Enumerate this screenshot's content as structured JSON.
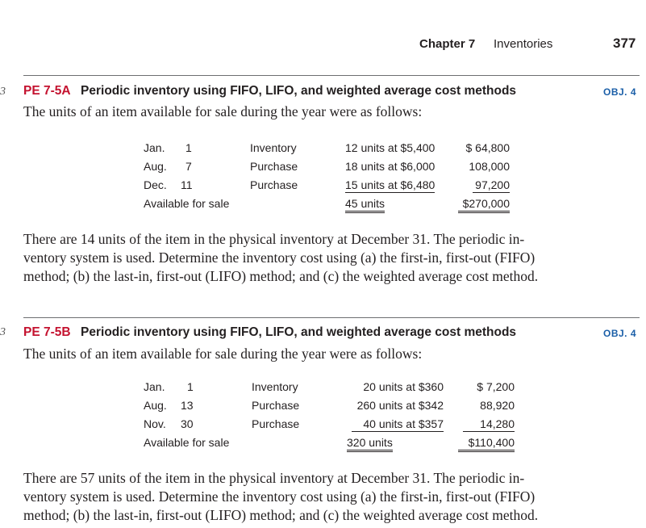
{
  "header": {
    "chapter": "Chapter 7",
    "title": "Inventories",
    "page_number": "377"
  },
  "margin_mark": "3",
  "exercises": [
    {
      "id": "PE 7-5A",
      "title": "Periodic inventory using FIFO, LIFO, and weighted average cost methods",
      "objective": "OBJ. 4",
      "intro": "The units of an item available for sale during the year were as follows:",
      "rows": [
        {
          "month": "Jan.",
          "day": "1",
          "type": "Inventory",
          "detail": "12 units at $5,400",
          "amount": "$ 64,800"
        },
        {
          "month": "Aug.",
          "day": "7",
          "type": "Purchase",
          "detail": "18 units at $6,000",
          "amount": "108,000"
        },
        {
          "month": "Dec.",
          "day": "11",
          "type": "Purchase",
          "detail": "15 units at $6,480",
          "amount": "97,200"
        }
      ],
      "total": {
        "label": "Available for sale",
        "detail": "45 units",
        "amount": "$270,000"
      },
      "paragraph_lines": [
        "There are 14 units of the item in the physical inventory at December 31. The periodic in-",
        "ventory system is used. Determine the inventory cost using (a) the first-in, first-out (FIFO)",
        "method; (b) the last-in, first-out (LIFO) method; and (c) the weighted average cost method."
      ]
    },
    {
      "id": "PE 7-5B",
      "title": "Periodic inventory using FIFO, LIFO, and weighted average cost methods",
      "objective": "OBJ. 4",
      "intro": "The units of an item available for sale during the year were as follows:",
      "rows": [
        {
          "month": "Jan.",
          "day": "1",
          "type": "Inventory",
          "detail": "20 units at $360",
          "amount": "$ 7,200"
        },
        {
          "month": "Aug.",
          "day": "13",
          "type": "Purchase",
          "detail": "260 units at $342",
          "amount": "88,920"
        },
        {
          "month": "Nov.",
          "day": "30",
          "type": "Purchase",
          "detail": "40 units at $357",
          "amount": "14,280"
        }
      ],
      "total": {
        "label": "Available for sale",
        "detail": "320 units",
        "amount": "$110,400"
      },
      "paragraph_lines": [
        "There are 57 units of the item in the physical inventory at December 31. The periodic in-",
        "ventory system is used. Determine the inventory cost using (a) the first-in, first-out (FIFO)",
        "method; (b) the last-in, first-out (LIFO) method; and (c) the weighted average cost method."
      ]
    }
  ]
}
